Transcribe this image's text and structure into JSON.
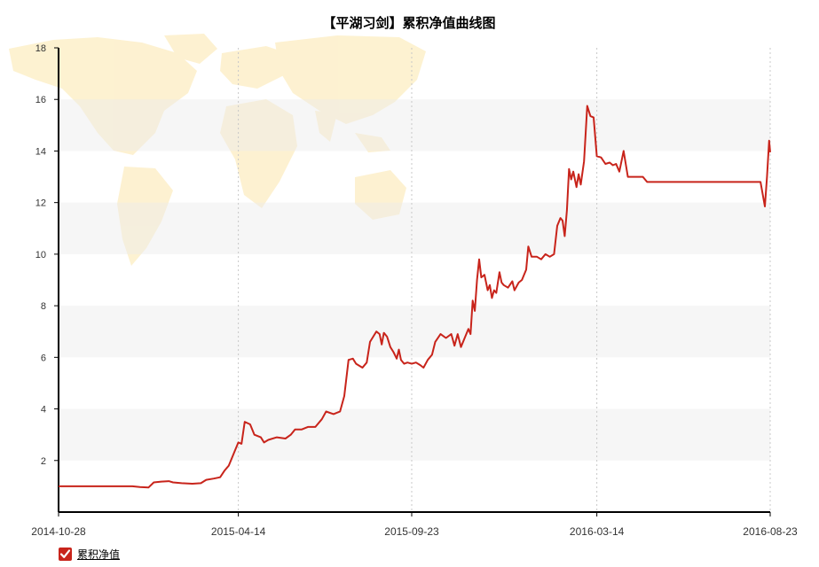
{
  "chart_data": {
    "type": "line",
    "title": "【平湖习剑】累积净值曲线图",
    "xlabel": "",
    "ylabel": "",
    "ylim": [
      0,
      18
    ],
    "yticks": [
      2,
      4,
      6,
      8,
      10,
      12,
      14,
      16,
      18
    ],
    "x_tick_labels": [
      "2014-10-28",
      "2015-04-14",
      "2015-09-23",
      "2016-03-14",
      "2016-08-23"
    ],
    "grid": "dashed vertical lines at x ticks; alternating horizontal bands",
    "legend": "bottom-left",
    "series": [
      {
        "name": "累积净值",
        "color": "#c8241b",
        "points": [
          [
            "2014-10-28",
            1.0
          ],
          [
            "2014-11-15",
            1.0
          ],
          [
            "2014-12-10",
            1.0
          ],
          [
            "2015-01-05",
            1.0
          ],
          [
            "2015-01-12",
            0.97
          ],
          [
            "2015-01-20",
            0.95
          ],
          [
            "2015-01-25",
            1.15
          ],
          [
            "2015-02-01",
            1.18
          ],
          [
            "2015-02-08",
            1.2
          ],
          [
            "2015-02-12",
            1.15
          ],
          [
            "2015-02-20",
            1.12
          ],
          [
            "2015-03-02",
            1.1
          ],
          [
            "2015-03-10",
            1.12
          ],
          [
            "2015-03-15",
            1.25
          ],
          [
            "2015-03-22",
            1.3
          ],
          [
            "2015-03-28",
            1.35
          ],
          [
            "2015-04-01",
            1.6
          ],
          [
            "2015-04-05",
            1.8
          ],
          [
            "2015-04-10",
            2.3
          ],
          [
            "2015-04-14",
            2.7
          ],
          [
            "2015-04-17",
            2.65
          ],
          [
            "2015-04-20",
            3.5
          ],
          [
            "2015-04-25",
            3.4
          ],
          [
            "2015-04-29",
            3.0
          ],
          [
            "2015-05-05",
            2.9
          ],
          [
            "2015-05-08",
            2.7
          ],
          [
            "2015-05-12",
            2.8
          ],
          [
            "2015-05-20",
            2.9
          ],
          [
            "2015-05-28",
            2.85
          ],
          [
            "2015-06-02",
            3.0
          ],
          [
            "2015-06-06",
            3.2
          ],
          [
            "2015-06-12",
            3.2
          ],
          [
            "2015-06-18",
            3.3
          ],
          [
            "2015-06-25",
            3.3
          ],
          [
            "2015-07-01",
            3.6
          ],
          [
            "2015-07-05",
            3.9
          ],
          [
            "2015-07-12",
            3.8
          ],
          [
            "2015-07-18",
            3.9
          ],
          [
            "2015-07-22",
            4.5
          ],
          [
            "2015-07-26",
            5.9
          ],
          [
            "2015-07-30",
            5.95
          ],
          [
            "2015-08-02",
            5.75
          ],
          [
            "2015-08-08",
            5.6
          ],
          [
            "2015-08-12",
            5.8
          ],
          [
            "2015-08-15",
            6.6
          ],
          [
            "2015-08-18",
            6.8
          ],
          [
            "2015-08-21",
            7.0
          ],
          [
            "2015-08-24",
            6.9
          ],
          [
            "2015-08-26",
            6.5
          ],
          [
            "2015-08-28",
            6.95
          ],
          [
            "2015-08-31",
            6.8
          ],
          [
            "2015-09-03",
            6.4
          ],
          [
            "2015-09-06",
            6.2
          ],
          [
            "2015-09-09",
            5.95
          ],
          [
            "2015-09-11",
            6.3
          ],
          [
            "2015-09-13",
            5.9
          ],
          [
            "2015-09-16",
            5.75
          ],
          [
            "2015-09-19",
            5.8
          ],
          [
            "2015-09-23",
            5.75
          ],
          [
            "2015-09-27",
            5.8
          ],
          [
            "2015-10-01",
            5.7
          ],
          [
            "2015-10-04",
            5.6
          ],
          [
            "2015-10-08",
            5.9
          ],
          [
            "2015-10-12",
            6.1
          ],
          [
            "2015-10-15",
            6.6
          ],
          [
            "2015-10-20",
            6.9
          ],
          [
            "2015-10-25",
            6.75
          ],
          [
            "2015-10-30",
            6.9
          ],
          [
            "2015-11-02",
            6.45
          ],
          [
            "2015-11-05",
            6.9
          ],
          [
            "2015-11-08",
            6.4
          ],
          [
            "2015-11-12",
            6.8
          ],
          [
            "2015-11-15",
            7.1
          ],
          [
            "2015-11-17",
            6.9
          ],
          [
            "2015-11-19",
            8.2
          ],
          [
            "2015-11-21",
            7.8
          ],
          [
            "2015-11-23",
            9.0
          ],
          [
            "2015-11-25",
            9.8
          ],
          [
            "2015-11-27",
            9.1
          ],
          [
            "2015-11-30",
            9.2
          ],
          [
            "2015-12-03",
            8.6
          ],
          [
            "2015-12-05",
            8.8
          ],
          [
            "2015-12-07",
            8.3
          ],
          [
            "2015-12-09",
            8.6
          ],
          [
            "2015-12-11",
            8.5
          ],
          [
            "2015-12-14",
            9.3
          ],
          [
            "2015-12-16",
            8.9
          ],
          [
            "2015-12-18",
            8.8
          ],
          [
            "2015-12-22",
            8.7
          ],
          [
            "2015-12-26",
            8.95
          ],
          [
            "2015-12-28",
            8.6
          ],
          [
            "2016-01-01",
            8.9
          ],
          [
            "2016-01-04",
            9.0
          ],
          [
            "2016-01-08",
            9.4
          ],
          [
            "2016-01-10",
            10.3
          ],
          [
            "2016-01-13",
            9.9
          ],
          [
            "2016-01-18",
            9.9
          ],
          [
            "2016-01-22",
            9.8
          ],
          [
            "2016-01-26",
            10.0
          ],
          [
            "2016-01-30",
            9.9
          ],
          [
            "2016-02-03",
            10.0
          ],
          [
            "2016-02-06",
            11.1
          ],
          [
            "2016-02-09",
            11.4
          ],
          [
            "2016-02-11",
            11.3
          ],
          [
            "2016-02-13",
            10.7
          ],
          [
            "2016-02-15",
            11.7
          ],
          [
            "2016-02-17",
            13.3
          ],
          [
            "2016-02-19",
            12.9
          ],
          [
            "2016-02-21",
            13.2
          ],
          [
            "2016-02-24",
            12.6
          ],
          [
            "2016-02-26",
            13.1
          ],
          [
            "2016-02-28",
            12.7
          ],
          [
            "2016-03-02",
            13.6
          ],
          [
            "2016-03-05",
            15.75
          ],
          [
            "2016-03-08",
            15.35
          ],
          [
            "2016-03-11",
            15.3
          ],
          [
            "2016-03-14",
            13.8
          ],
          [
            "2016-03-18",
            13.75
          ],
          [
            "2016-03-22",
            13.5
          ],
          [
            "2016-03-26",
            13.55
          ],
          [
            "2016-03-29",
            13.45
          ],
          [
            "2016-04-01",
            13.5
          ],
          [
            "2016-04-04",
            13.2
          ],
          [
            "2016-04-08",
            14.0
          ],
          [
            "2016-04-12",
            13.0
          ],
          [
            "2016-04-20",
            13.0
          ],
          [
            "2016-04-26",
            13.0
          ],
          [
            "2016-04-30",
            12.8
          ],
          [
            "2016-05-15",
            12.8
          ],
          [
            "2016-06-15",
            12.8
          ],
          [
            "2016-07-15",
            12.8
          ],
          [
            "2016-08-14",
            12.8
          ],
          [
            "2016-08-18",
            11.85
          ],
          [
            "2016-08-20",
            13.0
          ],
          [
            "2016-08-22",
            14.4
          ],
          [
            "2016-08-23",
            13.95
          ]
        ]
      }
    ]
  },
  "legend": {
    "label": "累积净值"
  }
}
